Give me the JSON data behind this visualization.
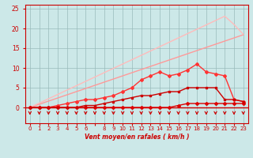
{
  "background_color": "#cce8e8",
  "grid_color": "#99bbbb",
  "x_labels": [
    "0",
    "1",
    "2",
    "3",
    "4",
    "5",
    "6",
    "",
    "8",
    "9",
    "10",
    "11",
    "12",
    "13",
    "14",
    "15",
    "16",
    "17",
    "18",
    "19",
    "20",
    "21",
    "22",
    "23"
  ],
  "x_values": [
    0,
    1,
    2,
    3,
    4,
    5,
    6,
    7,
    8,
    9,
    10,
    11,
    12,
    13,
    14,
    15,
    16,
    17,
    18,
    19,
    20,
    21,
    22,
    23
  ],
  "ylim": [
    0,
    26
  ],
  "yticks": [
    0,
    5,
    10,
    15,
    20,
    25
  ],
  "xlabel": "Vent moyen/en rafales ( km/h )",
  "line1": {
    "y": [
      0,
      0,
      0,
      0,
      0,
      0,
      0,
      0,
      0,
      0,
      0,
      0,
      0,
      0,
      0,
      0,
      0.5,
      1,
      1,
      1,
      1,
      1,
      1,
      1
    ],
    "color": "#dd0000",
    "marker": "D",
    "markersize": 2,
    "linewidth": 1.0
  },
  "line2": {
    "y": [
      0,
      0,
      0,
      0,
      0,
      0,
      0.5,
      0.5,
      1,
      1.5,
      2,
      2.5,
      3,
      3,
      3.5,
      4,
      4,
      5,
      5,
      5,
      5,
      2,
      2,
      1.5
    ],
    "color": "#cc0000",
    "marker": "s",
    "markersize": 2,
    "linewidth": 1.0
  },
  "line3": {
    "y": [
      0,
      0,
      0,
      0.5,
      1,
      1.5,
      2,
      2,
      2.5,
      3,
      4,
      5,
      7,
      8,
      9,
      8,
      8.5,
      9.5,
      11,
      9,
      8.5,
      8,
      2,
      1.5
    ],
    "color": "#ff3333",
    "marker": "D",
    "markersize": 2,
    "linewidth": 1.0
  },
  "line4_straight": {
    "y": [
      0,
      0.8,
      1.6,
      2.4,
      3.2,
      4.0,
      4.8,
      5.6,
      6.4,
      7.2,
      8.0,
      8.8,
      9.6,
      10.4,
      11.2,
      12.0,
      12.8,
      13.6,
      14.4,
      15.2,
      16.0,
      16.8,
      17.6,
      18.4
    ],
    "color": "#ff9999",
    "linewidth": 1.0
  },
  "line5_straight": {
    "y": [
      0,
      1.1,
      2.2,
      3.3,
      4.4,
      5.5,
      6.6,
      7.7,
      8.8,
      9.9,
      11.0,
      12.1,
      13.2,
      14.3,
      15.4,
      16.5,
      17.6,
      18.7,
      19.8,
      20.9,
      22.0,
      23.1,
      21.0,
      18.5
    ],
    "color": "#ffbbbb",
    "linewidth": 1.0
  },
  "wind_arrows_color": "#cc0000"
}
